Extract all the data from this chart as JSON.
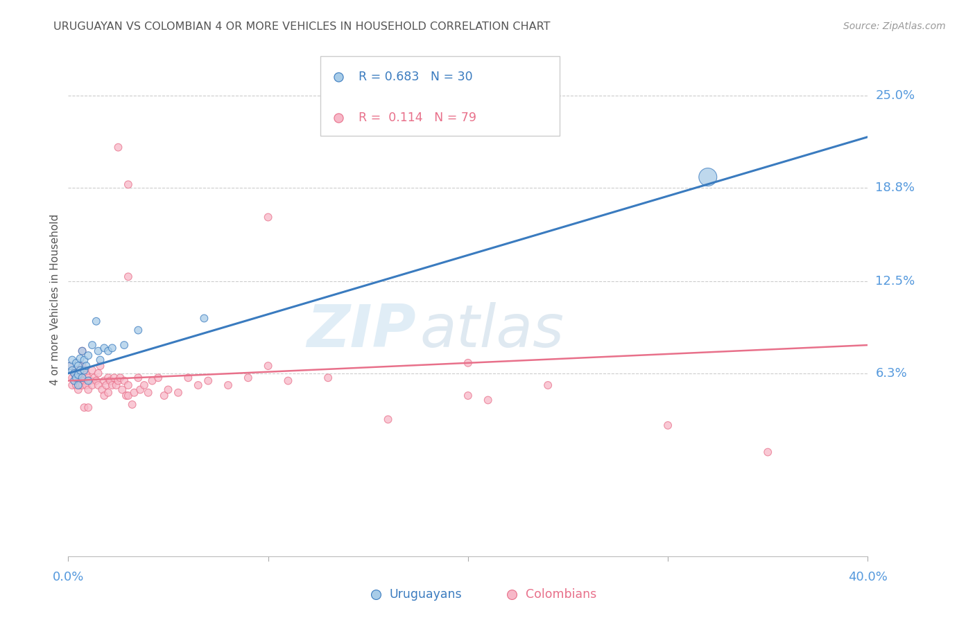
{
  "title": "URUGUAYAN VS COLOMBIAN 4 OR MORE VEHICLES IN HOUSEHOLD CORRELATION CHART",
  "source": "Source: ZipAtlas.com",
  "ylabel": "4 or more Vehicles in Household",
  "ytick_labels": [
    "25.0%",
    "18.8%",
    "12.5%",
    "6.3%"
  ],
  "ytick_values": [
    0.25,
    0.188,
    0.125,
    0.063
  ],
  "xlim": [
    0.0,
    0.4
  ],
  "ylim": [
    -0.06,
    0.285
  ],
  "legend_text_blue": "R = 0.683   N = 30",
  "legend_text_pink": "R =  0.114   N = 79",
  "watermark_zip": "ZIP",
  "watermark_atlas": "atlas",
  "blue_color": "#a8cce8",
  "pink_color": "#f7b8c8",
  "blue_line_color": "#3a7bbf",
  "pink_line_color": "#e8708a",
  "axis_label_color": "#5599dd",
  "title_color": "#555555",
  "source_color": "#999999",
  "grid_color": "#cccccc",
  "uruguayan_points": [
    [
      0.001,
      0.068
    ],
    [
      0.002,
      0.072
    ],
    [
      0.002,
      0.065
    ],
    [
      0.003,
      0.058
    ],
    [
      0.003,
      0.063
    ],
    [
      0.004,
      0.07
    ],
    [
      0.004,
      0.06
    ],
    [
      0.005,
      0.068
    ],
    [
      0.005,
      0.062
    ],
    [
      0.005,
      0.055
    ],
    [
      0.006,
      0.073
    ],
    [
      0.006,
      0.065
    ],
    [
      0.007,
      0.078
    ],
    [
      0.007,
      0.06
    ],
    [
      0.008,
      0.072
    ],
    [
      0.008,
      0.065
    ],
    [
      0.009,
      0.068
    ],
    [
      0.01,
      0.075
    ],
    [
      0.01,
      0.058
    ],
    [
      0.012,
      0.082
    ],
    [
      0.014,
      0.098
    ],
    [
      0.015,
      0.078
    ],
    [
      0.016,
      0.072
    ],
    [
      0.018,
      0.08
    ],
    [
      0.02,
      0.078
    ],
    [
      0.022,
      0.08
    ],
    [
      0.028,
      0.082
    ],
    [
      0.035,
      0.092
    ],
    [
      0.068,
      0.1
    ],
    [
      0.32,
      0.195
    ]
  ],
  "uruguayan_sizes": [
    60,
    60,
    60,
    60,
    60,
    60,
    60,
    60,
    60,
    60,
    60,
    60,
    60,
    60,
    60,
    60,
    60,
    60,
    60,
    60,
    60,
    60,
    60,
    60,
    60,
    60,
    60,
    60,
    60,
    350
  ],
  "colombian_points": [
    [
      0.001,
      0.068
    ],
    [
      0.002,
      0.06
    ],
    [
      0.002,
      0.055
    ],
    [
      0.003,
      0.063
    ],
    [
      0.003,
      0.058
    ],
    [
      0.004,
      0.06
    ],
    [
      0.004,
      0.055
    ],
    [
      0.005,
      0.065
    ],
    [
      0.005,
      0.058
    ],
    [
      0.005,
      0.052
    ],
    [
      0.006,
      0.062
    ],
    [
      0.006,
      0.055
    ],
    [
      0.007,
      0.068
    ],
    [
      0.007,
      0.06
    ],
    [
      0.007,
      0.055
    ],
    [
      0.008,
      0.065
    ],
    [
      0.008,
      0.058
    ],
    [
      0.009,
      0.062
    ],
    [
      0.009,
      0.055
    ],
    [
      0.01,
      0.06
    ],
    [
      0.01,
      0.052
    ],
    [
      0.011,
      0.058
    ],
    [
      0.012,
      0.065
    ],
    [
      0.012,
      0.055
    ],
    [
      0.013,
      0.06
    ],
    [
      0.014,
      0.058
    ],
    [
      0.015,
      0.063
    ],
    [
      0.015,
      0.055
    ],
    [
      0.016,
      0.068
    ],
    [
      0.017,
      0.052
    ],
    [
      0.018,
      0.058
    ],
    [
      0.018,
      0.048
    ],
    [
      0.019,
      0.055
    ],
    [
      0.02,
      0.06
    ],
    [
      0.02,
      0.05
    ],
    [
      0.021,
      0.058
    ],
    [
      0.022,
      0.055
    ],
    [
      0.023,
      0.06
    ],
    [
      0.024,
      0.055
    ],
    [
      0.025,
      0.058
    ],
    [
      0.026,
      0.06
    ],
    [
      0.027,
      0.052
    ],
    [
      0.028,
      0.058
    ],
    [
      0.029,
      0.048
    ],
    [
      0.03,
      0.055
    ],
    [
      0.03,
      0.048
    ],
    [
      0.032,
      0.042
    ],
    [
      0.033,
      0.05
    ],
    [
      0.035,
      0.06
    ],
    [
      0.036,
      0.052
    ],
    [
      0.038,
      0.055
    ],
    [
      0.04,
      0.05
    ],
    [
      0.042,
      0.058
    ],
    [
      0.045,
      0.06
    ],
    [
      0.048,
      0.048
    ],
    [
      0.05,
      0.052
    ],
    [
      0.055,
      0.05
    ],
    [
      0.06,
      0.06
    ],
    [
      0.065,
      0.055
    ],
    [
      0.07,
      0.058
    ],
    [
      0.08,
      0.055
    ],
    [
      0.09,
      0.06
    ],
    [
      0.1,
      0.068
    ],
    [
      0.11,
      0.058
    ],
    [
      0.13,
      0.06
    ],
    [
      0.16,
      0.032
    ],
    [
      0.2,
      0.048
    ],
    [
      0.21,
      0.045
    ],
    [
      0.24,
      0.055
    ],
    [
      0.3,
      0.028
    ],
    [
      0.35,
      0.01
    ],
    [
      0.025,
      0.215
    ],
    [
      0.03,
      0.19
    ],
    [
      0.1,
      0.168
    ],
    [
      0.03,
      0.128
    ],
    [
      0.2,
      0.07
    ],
    [
      0.007,
      0.078
    ],
    [
      0.008,
      0.04
    ],
    [
      0.01,
      0.04
    ]
  ],
  "colombian_sizes": [
    60,
    60,
    60,
    60,
    60,
    60,
    60,
    60,
    60,
    60,
    60,
    60,
    60,
    60,
    60,
    60,
    60,
    60,
    60,
    60,
    60,
    60,
    60,
    60,
    60,
    60,
    60,
    60,
    60,
    60,
    60,
    60,
    60,
    60,
    60,
    60,
    60,
    60,
    60,
    60,
    60,
    60,
    60,
    60,
    60,
    60,
    60,
    60,
    60,
    60,
    60,
    60,
    60,
    60,
    60,
    60,
    60,
    60,
    60,
    60,
    60,
    60,
    60,
    60,
    60,
    60,
    60,
    60,
    60,
    60,
    60,
    60,
    60,
    60,
    60,
    60,
    60,
    60,
    60
  ],
  "blue_line_x": [
    0.0,
    0.4
  ],
  "blue_line_y": [
    0.063,
    0.222
  ],
  "pink_line_x": [
    0.0,
    0.4
  ],
  "pink_line_y": [
    0.058,
    0.082
  ]
}
